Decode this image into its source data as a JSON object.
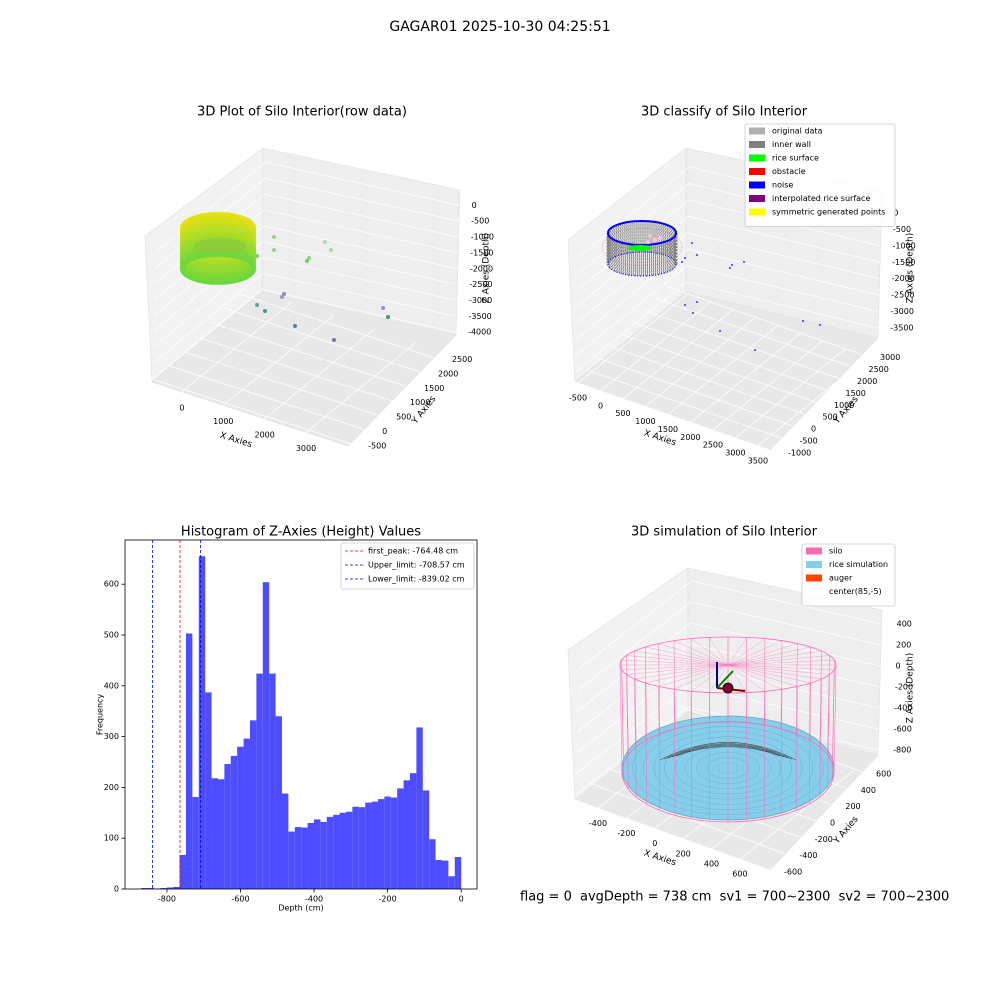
{
  "title": "GAGAR01 2025-10-30 04:25:51",
  "footer": [
    "flag = 0",
    "avgDepth = 738 cm  sv1 = 700~2300  sv2 = 700~2300"
  ],
  "chart_data": [
    {
      "type": "scatter3d",
      "title": "3D Plot of Silo Interior(row data)",
      "xlabel": "X Axies",
      "ylabel": "Y Axies",
      "zlabel": "Z Axies (Depth)",
      "xlim": [
        -725,
        4015
      ],
      "xticks": [
        0,
        1000,
        2000,
        3000
      ],
      "ylim": [
        -577,
        3289
      ],
      "yticks": [
        -500,
        0,
        500,
        1000,
        1500,
        2000,
        2500
      ],
      "zlim": [
        -4088,
        484
      ],
      "zticks": [
        0,
        -500,
        -1000,
        -1500,
        -2000,
        -2500,
        -3000,
        -3500,
        -4000
      ]
    },
    {
      "type": "scatter3d",
      "title": "3D classify of Silo Interior",
      "xlabel": "X Axies",
      "ylabel": "Y Axies",
      "zlabel": "Z Axies (Depth)",
      "xlim": [
        -567,
        3769
      ],
      "xticks": [
        -500,
        0,
        500,
        1000,
        1500,
        2000,
        2500,
        3000,
        3500
      ],
      "ylim": [
        -1000,
        3695
      ],
      "yticks": [
        -1000,
        -500,
        0,
        500,
        1000,
        1500,
        2000,
        2500,
        3000
      ],
      "zlim": [
        -3804,
        700
      ],
      "zticks": [
        0,
        -500,
        -1000,
        -1500,
        -2000,
        -2500,
        -3000,
        -3500
      ],
      "legend_loc": "upper right",
      "legend": [
        {
          "name": "original data",
          "color": "#b0b0b0"
        },
        {
          "name": "inner wall",
          "color": "#808080"
        },
        {
          "name": "rice surface",
          "color": "#00ff00"
        },
        {
          "name": "obstacle",
          "color": "#ff0000"
        },
        {
          "name": "noise",
          "color": "#0000ff"
        },
        {
          "name": "interpolated rice surface",
          "color": "#800080"
        },
        {
          "name": "symmetric generated points",
          "color": "#ffff00"
        }
      ]
    },
    {
      "type": "histogram",
      "title": "Histogram of Z-Axies (Height) Values",
      "xlabel": "Depth (cm)",
      "ylabel": "Frequency",
      "color": "#4d4dff",
      "bins": [
        -870,
        -852.6,
        -835.2,
        -817.8,
        -800.4,
        -783,
        -765.6,
        -748.2,
        -730.8,
        -713.4,
        -696,
        -678.6,
        -661.2,
        -643.8,
        -626.4,
        -609,
        -591.6,
        -574.2,
        -556.8,
        -539.4,
        -522,
        -504.6,
        -487.2,
        -469.8,
        -452.4,
        -435,
        -417.6,
        -400.2,
        -382.8,
        -365.4,
        -348,
        -330.6,
        -313.2,
        -295.8,
        -278.4,
        -261,
        -243.6,
        -226.2,
        -208.8,
        -191.4,
        -174,
        -156.6,
        -139.2,
        -121.8,
        -104.4,
        -87,
        -69.6,
        -52.2,
        -34.8,
        -17.4,
        0
      ],
      "counts": [
        2,
        2,
        1,
        2,
        3,
        4,
        67,
        503,
        181,
        655,
        387,
        218,
        216,
        246,
        262,
        280,
        296,
        332,
        424,
        604,
        424,
        340,
        188,
        113,
        122,
        121,
        130,
        137,
        132,
        142,
        146,
        150,
        152,
        162,
        161,
        170,
        172,
        177,
        182,
        180,
        198,
        214,
        228,
        318,
        194,
        98,
        57,
        56,
        25,
        63
      ],
      "xlim": [
        -914,
        43
      ],
      "xticks": [
        -800,
        -600,
        -400,
        -200,
        0
      ],
      "ylim": [
        0,
        687
      ],
      "yticks": [
        0,
        100,
        200,
        300,
        400,
        500,
        600
      ],
      "legend_loc": "upper right",
      "vlines": [
        {
          "name": "first_peak: -764.48 cm",
          "value": -764.48,
          "color": "#ff0000"
        },
        {
          "name": "Upper_limit: -708.57 cm",
          "value": -708.57,
          "color": "#0000ff"
        },
        {
          "name": "Lower_limit: -839.02 cm",
          "value": -839.02,
          "color": "#0000ff"
        }
      ]
    },
    {
      "type": "surface3d",
      "title": "3D simulation of Silo Interior",
      "xlabel": "X Axies",
      "ylabel": "Y Axies",
      "zlabel": "Z Axies (Depth)",
      "xlim": [
        -562,
        812
      ],
      "xticks": [
        -400,
        -200,
        0,
        200,
        400,
        600
      ],
      "ylim": [
        -600,
        808
      ],
      "yticks": [
        -600,
        -400,
        -200,
        0,
        200,
        400,
        600
      ],
      "zlim": [
        -848,
        533
      ],
      "zticks": [
        400,
        200,
        0,
        -200,
        -400,
        -600,
        -800
      ],
      "legend_loc": "upper right",
      "legend": [
        {
          "name": "silo",
          "color": "#ff69b4"
        },
        {
          "name": "rice simulation",
          "color": "#87ceeb"
        },
        {
          "name": "auger",
          "color": "#ff4500"
        },
        {
          "name": "center(85,-5)",
          "color": "#ffffff"
        }
      ]
    }
  ]
}
